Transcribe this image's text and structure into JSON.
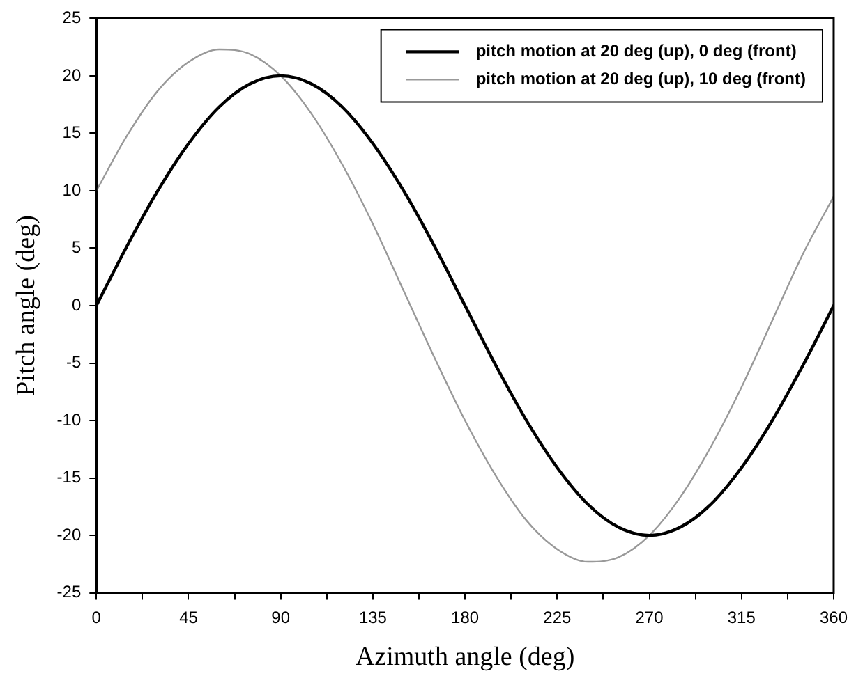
{
  "chart_data": {
    "type": "line",
    "xlabel": "Azimuth angle (deg)",
    "ylabel": "Pitch angle (deg)",
    "x": [
      0,
      15,
      30,
      45,
      60,
      75,
      90,
      105,
      120,
      135,
      150,
      165,
      180,
      195,
      210,
      225,
      240,
      255,
      270,
      285,
      300,
      315,
      330,
      345,
      360
    ],
    "series": [
      {
        "name": "pitch motion at 20 deg (up), 0 deg (front)",
        "color": "#000000",
        "values": [
          0,
          5.2,
          10,
          14.1,
          17.3,
          19.3,
          20,
          19.3,
          17.3,
          14.1,
          10,
          5.2,
          0,
          -5.2,
          -10,
          -14.1,
          -17.3,
          -19.3,
          -20,
          -19.3,
          -17.3,
          -14.1,
          -10,
          -5.2,
          0
        ]
      },
      {
        "name": "pitch motion at 20 deg (up), 10 deg (front)",
        "color": "#999999",
        "values": [
          10,
          14.8,
          18.7,
          21.2,
          22.3,
          21.9,
          20,
          16.7,
          12.3,
          7.1,
          1.3,
          -4.5,
          -10,
          -14.8,
          -18.7,
          -21.2,
          -22.3,
          -21.9,
          -20,
          -16.7,
          -12.3,
          -7.1,
          -1.3,
          4.5,
          9.5
        ]
      }
    ],
    "xlim": [
      0,
      360
    ],
    "xticks": [
      0,
      {
        "value": 22.5,
        "label": null
      },
      45,
      {
        "value": 67.5,
        "label": null
      },
      90,
      {
        "value": 112.5,
        "label": null
      },
      135,
      {
        "value": 157.5,
        "label": null
      },
      180,
      {
        "value": 202.5,
        "label": null
      },
      225,
      {
        "value": 247.5,
        "label": null
      },
      270,
      {
        "value": 292.5,
        "label": null
      },
      315,
      {
        "value": 337.5,
        "label": null
      },
      360
    ],
    "ylim": [
      -25,
      25
    ],
    "yticks": [
      -25,
      -20,
      -15,
      -10,
      -5,
      0,
      5,
      10,
      15,
      20,
      25
    ],
    "grid": false,
    "legend": "top right",
    "marker": "none",
    "line_style": "solid"
  }
}
